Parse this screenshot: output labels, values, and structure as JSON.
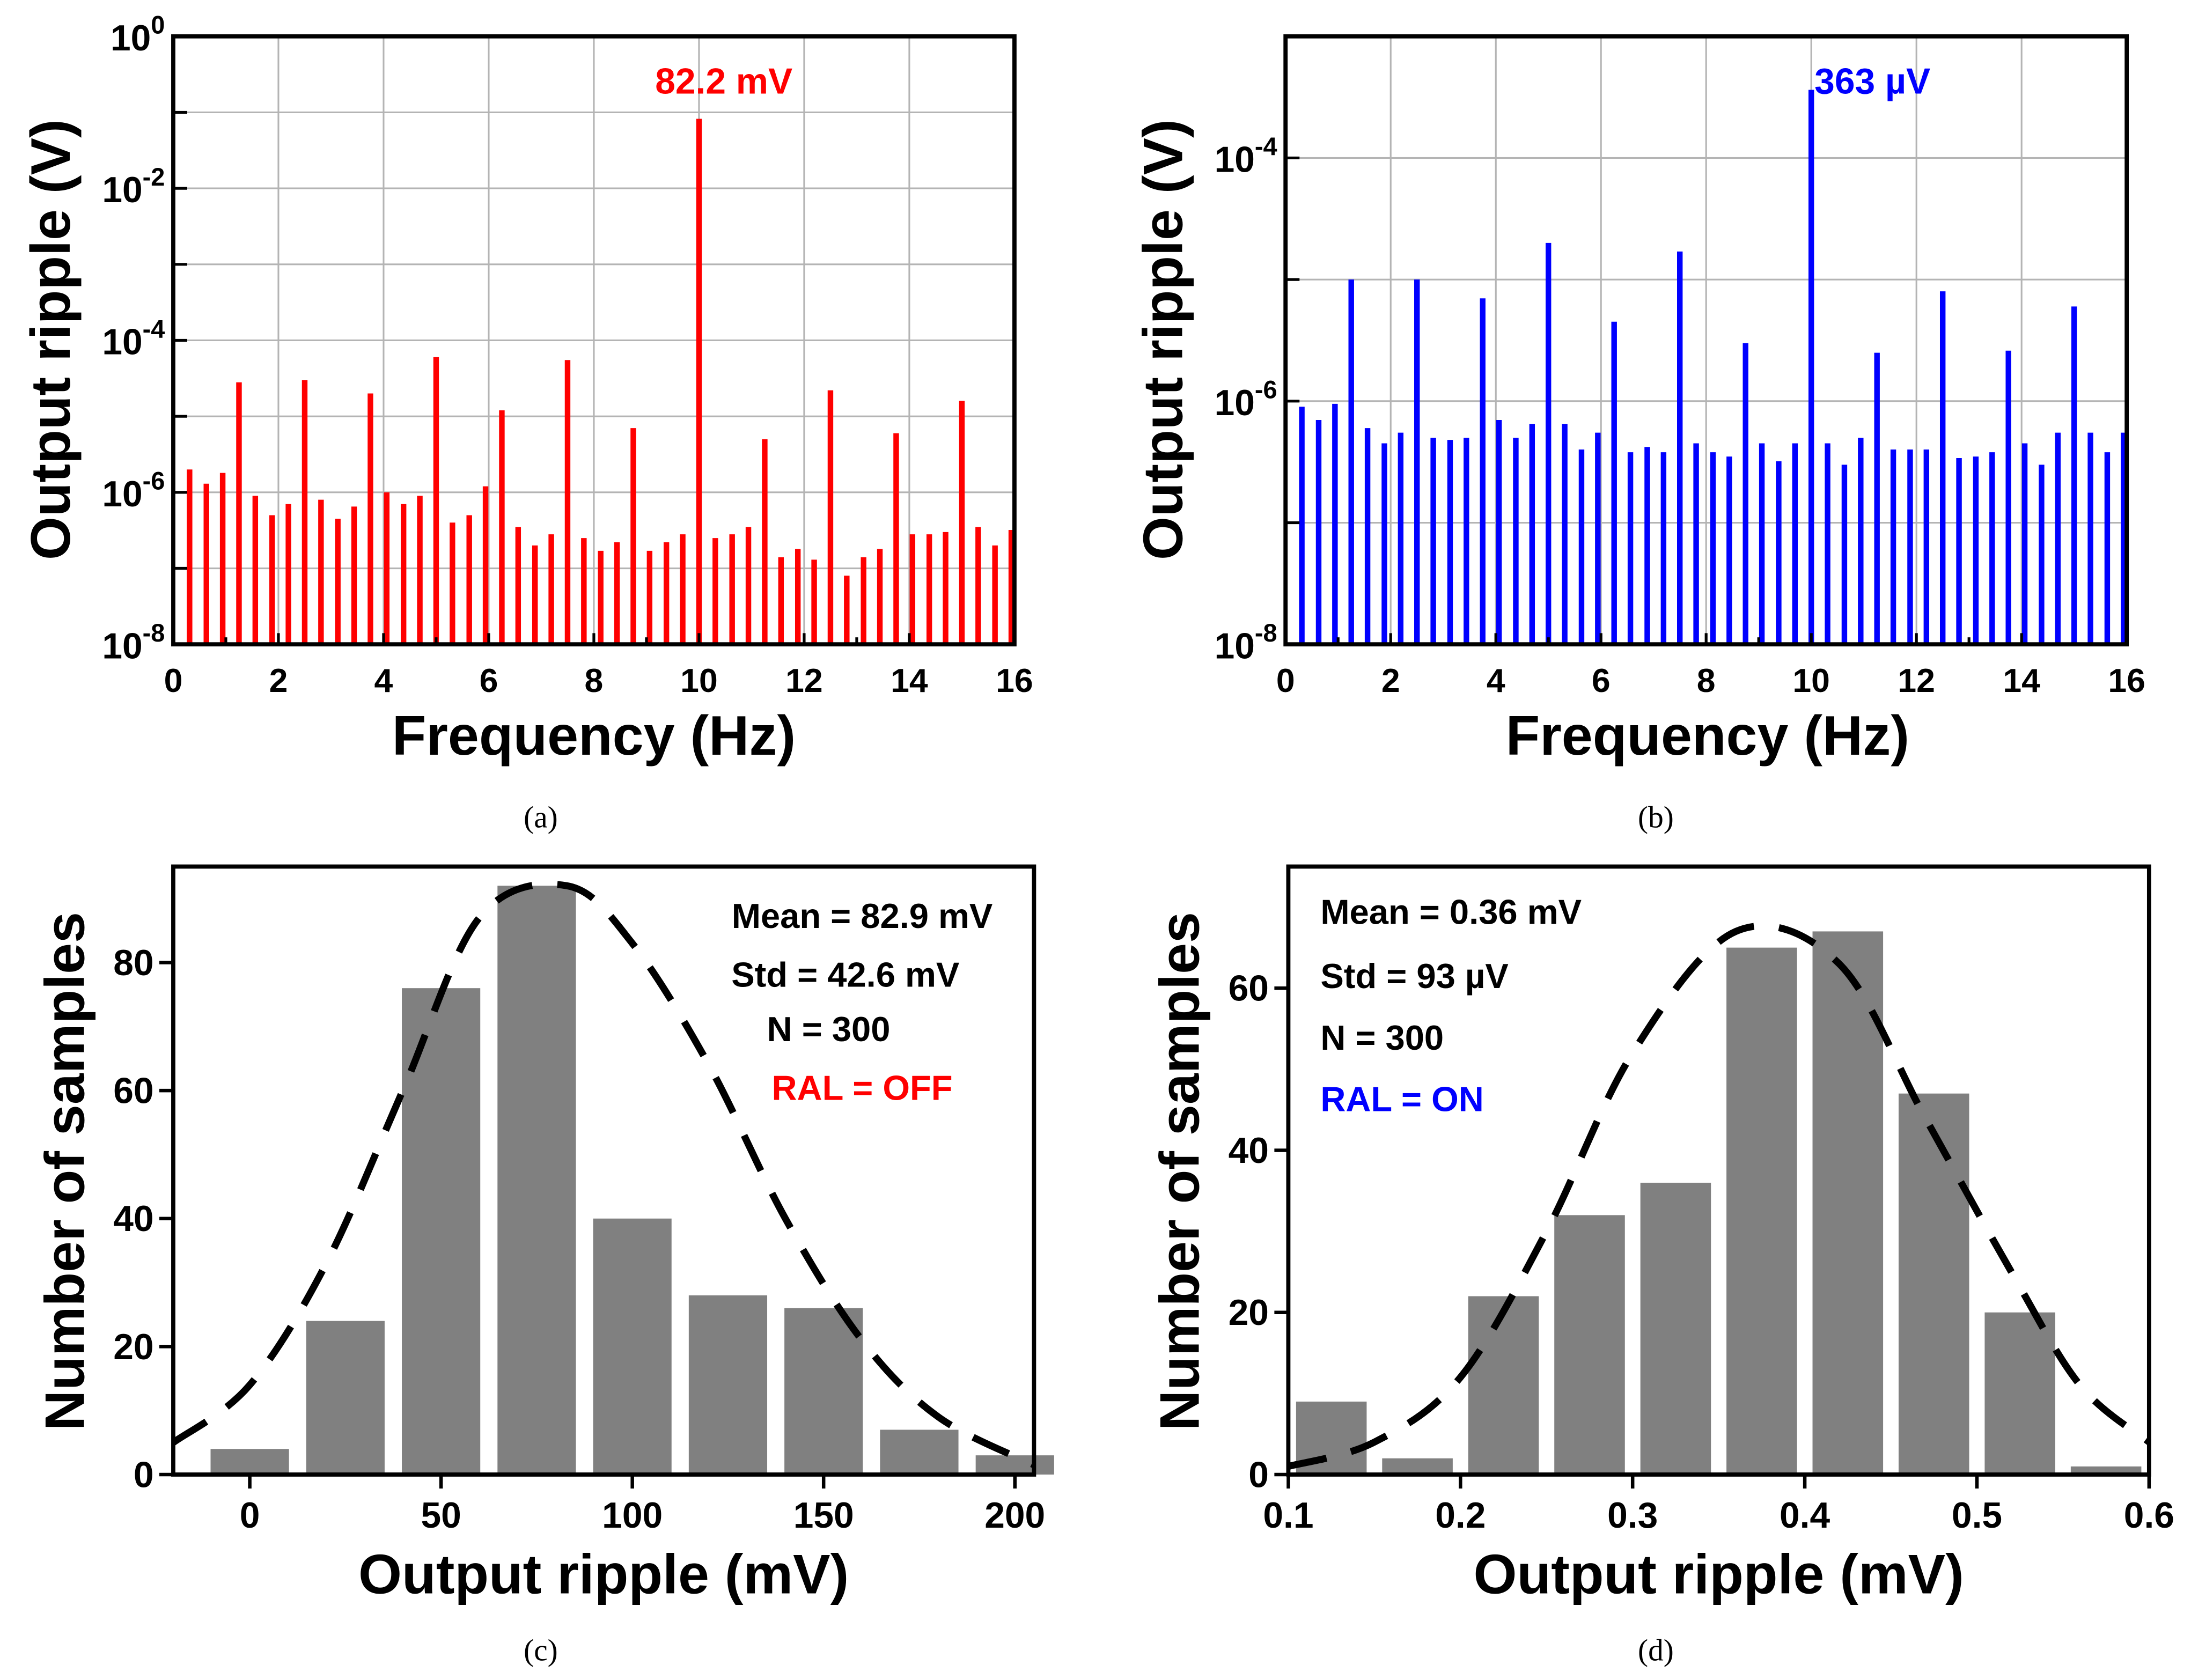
{
  "colors": {
    "red": "#ff0000",
    "blue": "#0000ff",
    "bar_gray": "#808080",
    "axis": "#000000"
  },
  "chart_data": [
    {
      "id": "a",
      "type": "bar",
      "scale": "log",
      "caption": "(a)",
      "xlabel": "Frequency (Hz)",
      "ylabel": "Output ripple (V)",
      "xlim": [
        0,
        16
      ],
      "ylim": [
        1e-08,
        1
      ],
      "xticks": [
        "0",
        "2",
        "4",
        "6",
        "8",
        "10",
        "12",
        "14",
        "16"
      ],
      "yticks": [
        {
          "base": "10",
          "exp": "-8"
        },
        {
          "base": "10",
          "exp": "-6"
        },
        {
          "base": "10",
          "exp": "-4"
        },
        {
          "base": "10",
          "exp": "-2"
        },
        {
          "base": "10",
          "exp": "0"
        }
      ],
      "grid": true,
      "color": "#ff0000",
      "annotation": "82.2 mV",
      "x": [
        0.31,
        0.63,
        0.94,
        1.25,
        1.56,
        1.88,
        2.19,
        2.5,
        2.81,
        3.13,
        3.44,
        3.75,
        4.06,
        4.38,
        4.69,
        5.0,
        5.31,
        5.63,
        5.94,
        6.25,
        6.56,
        6.88,
        7.19,
        7.5,
        7.81,
        8.13,
        8.44,
        8.75,
        9.06,
        9.38,
        9.69,
        10.0,
        10.31,
        10.63,
        10.94,
        11.25,
        11.56,
        11.88,
        12.19,
        12.5,
        12.81,
        13.13,
        13.44,
        13.75,
        14.06,
        14.38,
        14.69,
        15.0,
        15.31,
        15.63,
        15.94
      ],
      "values": [
        2e-06,
        1.3e-06,
        1.8e-06,
        2.8e-05,
        9e-07,
        5e-07,
        7e-07,
        3e-05,
        8e-07,
        4.5e-07,
        6.5e-07,
        2e-05,
        1e-06,
        7e-07,
        9e-07,
        6e-05,
        4e-07,
        5e-07,
        1.2e-06,
        1.2e-05,
        3.5e-07,
        2e-07,
        2.8e-07,
        5.5e-05,
        2.5e-07,
        1.7e-07,
        2.2e-07,
        7e-06,
        1.7e-07,
        2.2e-07,
        2.8e-07,
        0.0822,
        2.5e-07,
        2.8e-07,
        3.5e-07,
        5e-06,
        1.4e-07,
        1.8e-07,
        1.3e-07,
        2.2e-05,
        8e-08,
        1.4e-07,
        1.8e-07,
        6e-06,
        2.8e-07,
        2.8e-07,
        3e-07,
        1.6e-05,
        3.5e-07,
        2e-07,
        3.2e-07
      ]
    },
    {
      "id": "b",
      "type": "bar",
      "scale": "log",
      "caption": "(b)",
      "xlabel": "Frequency (Hz)",
      "ylabel": "Output ripple (V)",
      "xlim": [
        0,
        16
      ],
      "ylim": [
        1e-08,
        0.001
      ],
      "xticks": [
        "0",
        "2",
        "4",
        "6",
        "8",
        "10",
        "12",
        "14",
        "16"
      ],
      "yticks": [
        {
          "base": "10",
          "exp": "-8"
        },
        {
          "base": "10",
          "exp": "-6"
        },
        {
          "base": "10",
          "exp": "-4"
        }
      ],
      "grid": true,
      "color": "#0000ff",
      "annotation": "363 µV",
      "x": [
        0.31,
        0.63,
        0.94,
        1.25,
        1.56,
        1.88,
        2.19,
        2.5,
        2.81,
        3.13,
        3.44,
        3.75,
        4.06,
        4.38,
        4.69,
        5.0,
        5.31,
        5.63,
        5.94,
        6.25,
        6.56,
        6.88,
        7.19,
        7.5,
        7.81,
        8.13,
        8.44,
        8.75,
        9.06,
        9.38,
        9.69,
        10.0,
        10.31,
        10.63,
        10.94,
        11.25,
        11.56,
        11.88,
        12.19,
        12.5,
        12.81,
        13.13,
        13.44,
        13.75,
        14.06,
        14.38,
        14.69,
        15.0,
        15.31,
        15.63,
        15.94
      ],
      "values": [
        9e-07,
        7e-07,
        9.5e-07,
        1e-05,
        6e-07,
        4.5e-07,
        5.5e-07,
        1e-05,
        5e-07,
        4.8e-07,
        5e-07,
        7e-06,
        7e-07,
        5e-07,
        6.5e-07,
        2e-05,
        6.5e-07,
        4e-07,
        5.5e-07,
        4.5e-06,
        3.8e-07,
        4.2e-07,
        3.8e-07,
        1.7e-05,
        4.5e-07,
        3.8e-07,
        3.5e-07,
        3e-06,
        4.5e-07,
        3.2e-07,
        4.5e-07,
        0.000363,
        4.5e-07,
        3e-07,
        5e-07,
        2.5e-06,
        4e-07,
        4e-07,
        4e-07,
        8e-06,
        3.4e-07,
        3.5e-07,
        3.8e-07,
        2.6e-06,
        4.5e-07,
        3e-07,
        5.5e-07,
        6e-06,
        5.5e-07,
        3.8e-07,
        5.5e-07
      ]
    },
    {
      "id": "c",
      "type": "bar",
      "caption": "(c)",
      "xlabel": "Output ripple (mV)",
      "ylabel": "Number of samples",
      "xlim": [
        -20,
        205
      ],
      "ylim": [
        0,
        95
      ],
      "xticks": [
        0,
        50,
        100,
        150,
        200
      ],
      "yticks": [
        0,
        20,
        40,
        60,
        80
      ],
      "bin_width": 25,
      "categories": [
        0,
        25,
        50,
        75,
        100,
        125,
        150,
        175,
        200
      ],
      "values": [
        4,
        24,
        76,
        92,
        40,
        28,
        26,
        7,
        3
      ],
      "fit": {
        "type": "normal",
        "x": [
          -20,
          0,
          20,
          40,
          60,
          82.9,
          100,
          120,
          140,
          160,
          180,
          205
        ],
        "y": [
          5,
          14,
          33,
          60,
          87,
          92,
          83,
          64,
          40,
          21,
          9,
          1.5
        ]
      },
      "annotations": [
        "Mean = 82.9 mV",
        "Std = 42.6 mV",
        "N = 300",
        "RAL = OFF"
      ]
    },
    {
      "id": "d",
      "type": "bar",
      "caption": "(d)",
      "xlabel": "Output ripple (mV)",
      "ylabel": "Number of samples",
      "xlim": [
        0.1,
        0.6
      ],
      "ylim": [
        0,
        75
      ],
      "xticks": [
        "0.1",
        "0.2",
        "0.3",
        "0.4",
        "0.5",
        "0.6"
      ],
      "yticks": [
        0,
        20,
        40,
        60
      ],
      "bin_width": 0.05,
      "categories": [
        0.125,
        0.175,
        0.225,
        0.275,
        0.325,
        0.375,
        0.425,
        0.475,
        0.525,
        0.575
      ],
      "values": [
        9,
        2,
        22,
        32,
        36,
        65,
        67,
        47,
        20,
        1
      ],
      "fit": {
        "type": "normal",
        "x": [
          0.1,
          0.15,
          0.2,
          0.25,
          0.3,
          0.36,
          0.42,
          0.47,
          0.52,
          0.56,
          0.6
        ],
        "y": [
          1,
          4,
          12,
          30,
          52,
          67,
          63,
          44,
          25,
          11,
          4
        ]
      },
      "annotations": [
        "Mean = 0.36 mV",
        "Std = 93 µV",
        "N = 300",
        "RAL = ON"
      ]
    }
  ]
}
